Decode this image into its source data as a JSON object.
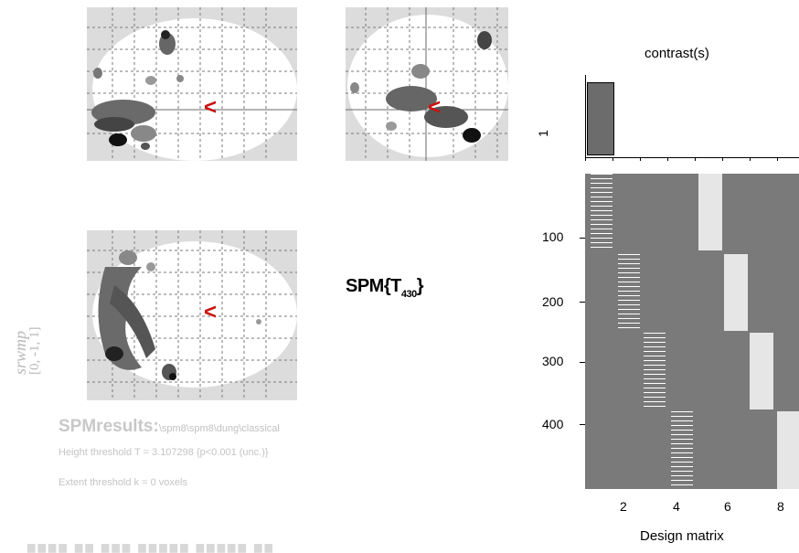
{
  "figure": {
    "side_label_top": "srwmp",
    "side_label_bottom": "[0, -1, 1]",
    "spm_title_main": "SPM{T",
    "spm_title_sub": "430",
    "spm_title_close": "}",
    "marker_symbol": "<"
  },
  "results": {
    "heading": "SPMresults:",
    "path": "\\spm8\\spm8\\dung\\classical",
    "height_threshold": "Height threshold T = 3.107298  {p<0.001 (unc.)}",
    "extent_threshold": "Extent threshold k = 0 voxels"
  },
  "contrast": {
    "title": "contrast(s)",
    "row_label": "1",
    "values": [
      1
    ]
  },
  "design_matrix": {
    "xlabel": "Design matrix",
    "xticks": [
      "2",
      "4",
      "6",
      "8"
    ],
    "yticks": [
      "100",
      "200",
      "300",
      "400"
    ],
    "rows": 490,
    "columns": 8
  },
  "footer": {
    "text": "▆▆▆▆ ▆▆ ▆▆▆ ▆▆▆▆▆ ▆▆▆▆▆ ▆▆"
  },
  "colors": {
    "glass_bg": "#dcdcdc",
    "brain_outline": "#ffffff",
    "marker": "#cc1111",
    "design_bg": "#7a7a7a",
    "design_light": "#e6e6e6"
  }
}
